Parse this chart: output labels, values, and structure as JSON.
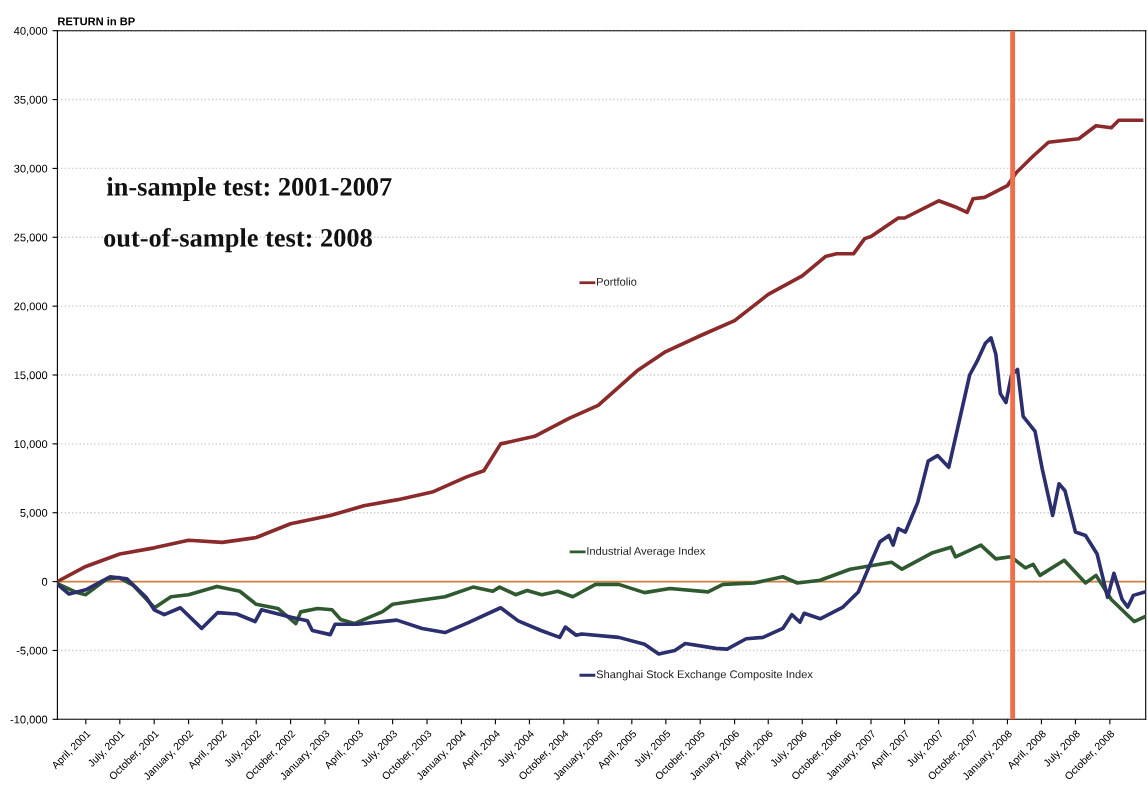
{
  "chart_data": {
    "type": "line",
    "title": "RETURN in BP",
    "annotations": [
      "in-sample test: 2001-2007",
      "out-of-sample test: 2008"
    ],
    "series": [
      {
        "name": "Portfolio",
        "color": "#8b2a2a",
        "x": [
          "2001-01-15",
          "2001-04-01",
          "2001-07-01",
          "2001-10-01",
          "2002-01-01",
          "2002-04-01",
          "2002-07-01",
          "2002-10-01",
          "2003-01-15",
          "2003-04-15",
          "2003-07-15",
          "2003-10-15",
          "2004-01-15",
          "2004-03-01",
          "2004-04-15",
          "2004-07-15",
          "2004-10-15",
          "2005-01-01",
          "2005-04-15",
          "2005-07-01",
          "2005-10-01",
          "2006-01-01",
          "2006-04-01",
          "2006-07-01",
          "2006-09-01",
          "2006-10-01",
          "2006-11-15",
          "2006-12-15",
          "2007-01-01",
          "2007-03-15",
          "2007-04-01",
          "2007-07-01",
          "2007-08-15",
          "2007-09-15",
          "2007-10-01",
          "2007-11-01",
          "2008-01-01",
          "2008-01-25",
          "2008-03-10",
          "2008-04-20",
          "2008-07-10",
          "2008-08-25",
          "2008-10-05",
          "2008-10-25",
          "2008-12-25"
        ],
        "values": [
          0,
          1100,
          2000,
          2450,
          3000,
          2850,
          3200,
          4200,
          4800,
          5500,
          5950,
          6500,
          7600,
          8050,
          10000,
          10550,
          11850,
          12800,
          15300,
          16700,
          17850,
          18950,
          20850,
          22200,
          23600,
          23800,
          23800,
          24900,
          25050,
          26400,
          26400,
          27650,
          27200,
          26800,
          27800,
          27900,
          28750,
          29700,
          30900,
          31900,
          32150,
          33100,
          32950,
          33500,
          33500
        ]
      },
      {
        "name": "Industrial Average Index",
        "color": "#2f5a2f",
        "x": [
          "2001-01-15",
          "2001-03-08",
          "2001-04-01",
          "2001-05-25",
          "2001-06-28",
          "2001-08-05",
          "2001-10-02",
          "2001-11-15",
          "2002-01-01",
          "2002-03-18",
          "2002-05-18",
          "2002-07-01",
          "2002-08-28",
          "2002-10-15",
          "2002-10-28",
          "2002-12-12",
          "2003-01-20",
          "2003-02-12",
          "2003-03-20",
          "2003-06-03",
          "2003-07-01",
          "2003-09-12",
          "2003-11-18",
          "2004-02-01",
          "2004-03-25",
          "2004-04-12",
          "2004-05-25",
          "2004-06-25",
          "2004-08-03",
          "2004-09-15",
          "2004-10-25",
          "2004-12-25",
          "2005-02-25",
          "2005-05-05",
          "2005-07-12",
          "2005-10-22",
          "2005-12-01",
          "2006-02-22",
          "2006-05-10",
          "2006-06-18",
          "2006-08-18",
          "2006-11-06",
          "2007-02-25",
          "2007-03-25",
          "2007-06-15",
          "2007-08-03",
          "2007-08-15",
          "2007-10-22",
          "2007-12-01",
          "2008-01-10",
          "2008-02-18",
          "2008-03-10",
          "2008-03-28",
          "2008-06-01",
          "2008-07-28",
          "2008-08-25",
          "2008-10-05",
          "2008-12-05",
          "2009-01-03"
        ],
        "values": [
          -150,
          -800,
          -950,
          150,
          300,
          -250,
          -1900,
          -1100,
          -950,
          -350,
          -700,
          -1650,
          -1950,
          -3050,
          -2200,
          -1950,
          -2050,
          -2750,
          -3050,
          -2200,
          -1650,
          -1350,
          -1100,
          -400,
          -700,
          -400,
          -950,
          -650,
          -950,
          -700,
          -1100,
          -200,
          -200,
          -800,
          -500,
          -750,
          -200,
          -100,
          350,
          -100,
          100,
          900,
          1400,
          900,
          2100,
          2500,
          1800,
          2650,
          1650,
          1800,
          1000,
          1250,
          450,
          1550,
          -100,
          450,
          -1300,
          -2900,
          -2550
        ]
      },
      {
        "name": "Shanghai Stock Exchange Composite Index",
        "color": "#2b2f6e",
        "x": [
          "2001-01-15",
          "2001-02-15",
          "2001-04-01",
          "2001-06-05",
          "2001-07-20",
          "2001-09-10",
          "2001-10-01",
          "2001-10-28",
          "2001-12-10",
          "2002-02-05",
          "2002-03-20",
          "2002-05-10",
          "2002-06-28",
          "2002-07-15",
          "2002-10-05",
          "2002-11-15",
          "2002-11-28",
          "2003-01-15",
          "2003-01-28",
          "2003-03-28",
          "2003-07-12",
          "2003-09-18",
          "2003-11-18",
          "2004-01-18",
          "2004-04-15",
          "2004-06-01",
          "2004-08-01",
          "2004-09-20",
          "2004-10-05",
          "2004-11-03",
          "2004-11-18",
          "2005-02-25",
          "2005-05-05",
          "2005-06-12",
          "2005-07-25",
          "2005-08-22",
          "2005-11-12",
          "2005-12-12",
          "2006-02-01",
          "2006-03-18",
          "2006-05-10",
          "2006-06-03",
          "2006-06-25",
          "2006-07-06",
          "2006-08-18",
          "2006-10-18",
          "2006-11-28",
          "2006-12-28",
          "2007-01-25",
          "2007-02-18",
          "2007-03-01",
          "2007-03-15",
          "2007-04-03",
          "2007-05-06",
          "2007-06-03",
          "2007-06-28",
          "2007-07-28",
          "2007-09-22",
          "2007-10-12",
          "2007-11-03",
          "2007-11-18",
          "2007-12-01",
          "2007-12-13",
          "2007-12-28",
          "2008-01-12",
          "2008-01-28",
          "2008-02-12",
          "2008-03-15",
          "2008-04-03",
          "2008-05-01",
          "2008-05-18",
          "2008-06-03",
          "2008-07-01",
          "2008-07-28",
          "2008-08-28",
          "2008-09-25",
          "2008-10-12",
          "2008-11-03",
          "2008-11-18",
          "2008-12-03",
          "2009-01-03"
        ],
        "values": [
          -200,
          -900,
          -600,
          350,
          200,
          -1150,
          -2050,
          -2400,
          -1900,
          -3400,
          -2250,
          -2350,
          -2900,
          -2050,
          -2600,
          -2850,
          -3550,
          -3850,
          -3100,
          -3100,
          -2800,
          -3400,
          -3700,
          -3000,
          -1900,
          -2850,
          -3550,
          -4050,
          -3300,
          -3900,
          -3800,
          -4050,
          -4550,
          -5250,
          -5000,
          -4500,
          -4850,
          -4900,
          -4150,
          -4050,
          -3400,
          -2400,
          -2950,
          -2300,
          -2700,
          -1850,
          -750,
          1150,
          2900,
          3350,
          2650,
          3850,
          3600,
          5750,
          8750,
          9150,
          8300,
          15000,
          16000,
          17300,
          17700,
          16500,
          13650,
          13000,
          15000,
          15400,
          12000,
          10900,
          8200,
          4800,
          7100,
          6600,
          3600,
          3350,
          2000,
          -1150,
          600,
          -1300,
          -1850,
          -1000,
          -750
        ]
      }
    ],
    "xlim": [
      "2001-01-15",
      "2009-01-05"
    ],
    "xticks": [
      {
        "value": "2001-04-01",
        "label": "April, 2001"
      },
      {
        "value": "2001-07-01",
        "label": "July, 2001"
      },
      {
        "value": "2001-10-01",
        "label": "October, 2001"
      },
      {
        "value": "2002-01-01",
        "label": "January, 2002"
      },
      {
        "value": "2002-04-01",
        "label": "April, 2002"
      },
      {
        "value": "2002-07-01",
        "label": "July, 2002"
      },
      {
        "value": "2002-10-01",
        "label": "October, 2002"
      },
      {
        "value": "2003-01-01",
        "label": "January, 2003"
      },
      {
        "value": "2003-04-01",
        "label": "April, 2003"
      },
      {
        "value": "2003-07-01",
        "label": "July, 2003"
      },
      {
        "value": "2003-10-01",
        "label": "October, 2003"
      },
      {
        "value": "2004-01-01",
        "label": "January, 2004"
      },
      {
        "value": "2004-04-01",
        "label": "April, 2004"
      },
      {
        "value": "2004-07-01",
        "label": "July, 2004"
      },
      {
        "value": "2004-10-01",
        "label": "October, 2004"
      },
      {
        "value": "2005-01-01",
        "label": "January, 2005"
      },
      {
        "value": "2005-04-01",
        "label": "April, 2005"
      },
      {
        "value": "2005-07-01",
        "label": "July, 2005"
      },
      {
        "value": "2005-10-01",
        "label": "October, 2005"
      },
      {
        "value": "2006-01-01",
        "label": "January, 2006"
      },
      {
        "value": "2006-04-01",
        "label": "April, 2006"
      },
      {
        "value": "2006-07-01",
        "label": "July, 2006"
      },
      {
        "value": "2006-10-01",
        "label": "October, 2006"
      },
      {
        "value": "2007-01-01",
        "label": "January, 2007"
      },
      {
        "value": "2007-04-01",
        "label": "April, 2007"
      },
      {
        "value": "2007-07-01",
        "label": "July, 2007"
      },
      {
        "value": "2007-10-01",
        "label": "October, 2007"
      },
      {
        "value": "2008-01-01",
        "label": "January, 2008"
      },
      {
        "value": "2008-04-01",
        "label": "April, 2008"
      },
      {
        "value": "2008-07-01",
        "label": "July, 2008"
      },
      {
        "value": "2008-10-01",
        "label": "October, 2008"
      }
    ],
    "ylim": [
      -10000,
      40000
    ],
    "yticks": [
      {
        "value": -10000,
        "label": "-10,000"
      },
      {
        "value": -5000,
        "label": "-5,000"
      },
      0,
      {
        "value": 5000,
        "label": "5,000"
      },
      {
        "value": 10000,
        "label": "10,000"
      },
      {
        "value": 15000,
        "label": "15,000"
      },
      {
        "value": 20000,
        "label": "20,000"
      },
      {
        "value": 25000,
        "label": "25,000"
      },
      {
        "value": 30000,
        "label": "30,000"
      },
      {
        "value": 35000,
        "label": "35,000"
      },
      {
        "value": 40000,
        "label": "40,000"
      }
    ],
    "ref_lines": [
      {
        "axis": "y",
        "value": 0,
        "color": "#d08040"
      },
      {
        "axis": "x",
        "value": "2008-01-15",
        "color": "#ee6f4a"
      }
    ],
    "grid": "y",
    "legend": "center"
  }
}
